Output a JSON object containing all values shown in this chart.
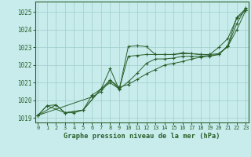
{
  "bg_color": "#c8ecec",
  "grid_color": "#a0cccc",
  "line_color": "#2a5f2a",
  "title": "Graphe pression niveau de la mer (hPa)",
  "xlim": [
    -0.3,
    23.3
  ],
  "ylim": [
    1018.75,
    1025.6
  ],
  "yticks": [
    1019,
    1020,
    1021,
    1022,
    1023,
    1024,
    1025
  ],
  "xticks": [
    0,
    1,
    2,
    3,
    4,
    5,
    6,
    7,
    8,
    9,
    10,
    11,
    12,
    13,
    14,
    15,
    16,
    17,
    18,
    19,
    20,
    21,
    22,
    23
  ],
  "series": [
    {
      "x": [
        0,
        1,
        2,
        3,
        4,
        5,
        6,
        7,
        8,
        9,
        10,
        11,
        12,
        13,
        14,
        15,
        16,
        17,
        18,
        19,
        20,
        21,
        22,
        23
      ],
      "y": [
        1019.15,
        1019.7,
        1019.75,
        1019.3,
        1019.3,
        1019.45,
        1020.3,
        1020.65,
        1021.8,
        1020.6,
        1023.05,
        1023.1,
        1023.05,
        1022.6,
        1022.6,
        1022.6,
        1022.7,
        1022.65,
        1022.6,
        1022.6,
        1023.0,
        1023.5,
        1024.65,
        1025.1
      ]
    },
    {
      "x": [
        0,
        2,
        3,
        5,
        7,
        8,
        9,
        10,
        11,
        12,
        13,
        14,
        15,
        16,
        17,
        18,
        19,
        20,
        21,
        22,
        23
      ],
      "y": [
        1019.15,
        1019.75,
        1019.3,
        1019.45,
        1020.65,
        1021.0,
        1020.65,
        1022.5,
        1022.55,
        1022.6,
        1022.6,
        1022.6,
        1022.6,
        1022.65,
        1022.65,
        1022.6,
        1022.6,
        1022.65,
        1023.05,
        1024.0,
        1025.1
      ]
    },
    {
      "x": [
        0,
        1,
        3,
        5,
        7,
        8,
        9,
        10,
        11,
        12,
        13,
        14,
        15,
        16,
        17,
        18,
        19,
        20,
        21,
        22,
        23
      ],
      "y": [
        1019.15,
        1019.7,
        1019.3,
        1019.45,
        1020.65,
        1021.15,
        1020.65,
        1021.05,
        1021.55,
        1022.1,
        1022.35,
        1022.35,
        1022.4,
        1022.5,
        1022.5,
        1022.5,
        1022.55,
        1022.6,
        1023.05,
        1024.35,
        1025.25
      ]
    },
    {
      "x": [
        0,
        6,
        7,
        8,
        9,
        10,
        11,
        12,
        13,
        14,
        15,
        16,
        17,
        18,
        19,
        20,
        21,
        22,
        23
      ],
      "y": [
        1019.15,
        1020.2,
        1020.5,
        1021.15,
        1020.75,
        1020.9,
        1021.2,
        1021.5,
        1021.75,
        1022.0,
        1022.1,
        1022.2,
        1022.35,
        1022.45,
        1022.5,
        1022.6,
        1023.1,
        1024.7,
        1025.2
      ]
    }
  ]
}
